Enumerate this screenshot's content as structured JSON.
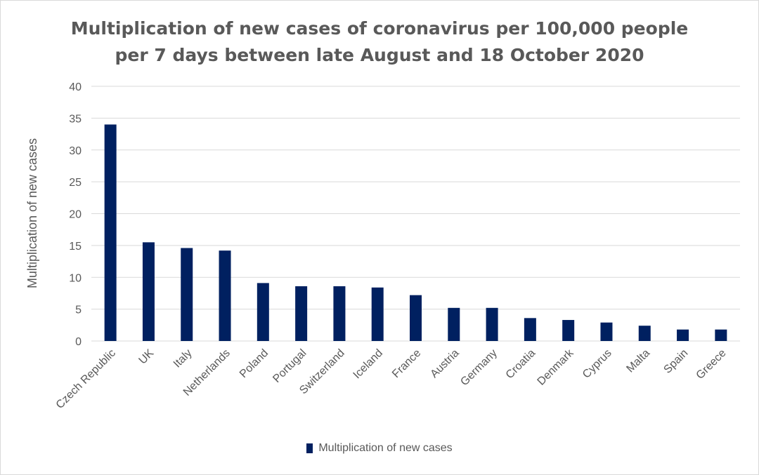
{
  "chart_data": {
    "type": "bar",
    "title_lines": [
      "Multiplication of new cases of coronavirus per 100,000 people",
      "per 7 days between late August and 18 October 2020"
    ],
    "xlabel": "",
    "ylabel": "Multiplication of new cases",
    "ylim": [
      0,
      40
    ],
    "yticks": [
      0,
      5,
      10,
      15,
      20,
      25,
      30,
      35,
      40
    ],
    "grid": true,
    "legend_position": "bottom",
    "categories": [
      "Czech Republic",
      "UK",
      "Italy",
      "Netherlands",
      "Poland",
      "Portugal",
      "Switzerland",
      "Iceland",
      "France",
      "Austria",
      "Germany",
      "Croatia",
      "Denmark",
      "Cyprus",
      "Malta",
      "Spain",
      "Greece"
    ],
    "series": [
      {
        "name": "Multiplication of new cases",
        "color": "#002060",
        "values": [
          34,
          15.5,
          14.6,
          14.2,
          9.1,
          8.6,
          8.6,
          8.4,
          7.2,
          5.2,
          5.2,
          3.6,
          3.3,
          2.9,
          2.4,
          1.8,
          1.8
        ]
      }
    ],
    "gridline_color": "#d9d9d9",
    "text_color": "#595959"
  }
}
